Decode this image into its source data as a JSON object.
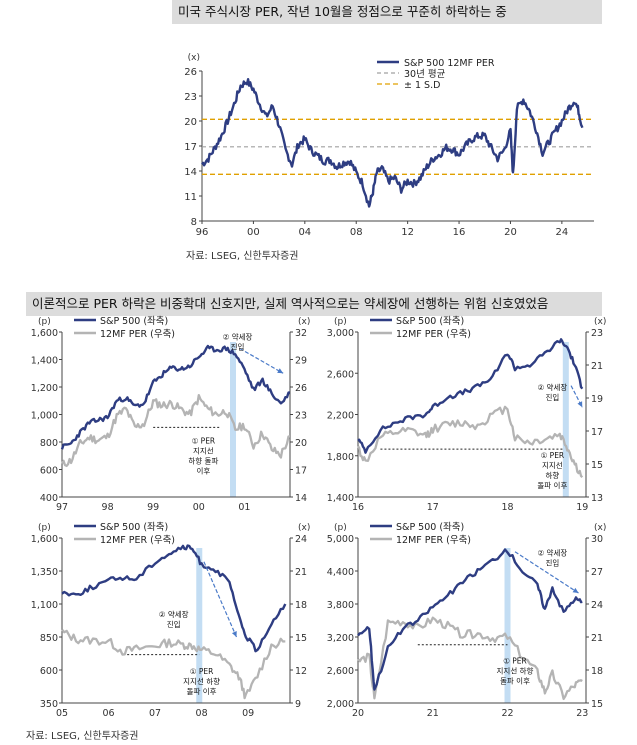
{
  "top": {
    "title": "미국 주식시장 PER, 작년 10월을 정점으로 꾸준히 하락하는 중",
    "source": "자료: LSEG, 신한투자증권",
    "unit": "(x)",
    "legend": {
      "s1": "S&P 500 12MF PER",
      "s2": "30년 평균",
      "s3": "± 1 S.D"
    }
  },
  "bottom": {
    "title": "이론적으로 PER 하락은 비중확대 신호지만, 실제 역사적으로는 약세장에 선행하는 위험 신호였었음",
    "source": "자료: LSEG, 신한투자증권"
  },
  "colors": {
    "navy": "#2e3d82",
    "gray": "#b4b4b4",
    "orange": "#e0a000",
    "band": "#bcd9f2",
    "arrow": "#4a7ac8",
    "avgline": "#a0a0a0"
  },
  "chart_data": [
    {
      "type": "line",
      "unit": "(x)",
      "x_ticks": [
        "96",
        "00",
        "04",
        "08",
        "12",
        "16",
        "20",
        "24"
      ],
      "ylim": [
        8,
        26
      ],
      "y_ticks": [
        8,
        11,
        14,
        17,
        20,
        23,
        26
      ],
      "reference_lines": {
        "mean": 16.9,
        "plus_1sd": 20.2,
        "minus_1sd": 13.6
      },
      "series": [
        {
          "name": "S&P 500 12MF PER",
          "x": [
            1996.0,
            1996.5,
            1997.0,
            1997.5,
            1998.0,
            1998.5,
            1999.0,
            1999.5,
            2000.0,
            2000.5,
            2001.0,
            2001.5,
            2002.0,
            2002.5,
            2003.0,
            2003.5,
            2004.0,
            2004.5,
            2005.0,
            2005.5,
            2006.0,
            2006.5,
            2007.0,
            2007.5,
            2008.0,
            2008.5,
            2009.0,
            2009.3,
            2009.6,
            2010.0,
            2010.5,
            2011.0,
            2011.5,
            2012.0,
            2012.5,
            2013.0,
            2013.5,
            2014.0,
            2014.5,
            2015.0,
            2015.5,
            2016.0,
            2016.5,
            2017.0,
            2017.5,
            2018.0,
            2018.5,
            2019.0,
            2019.5,
            2020.0,
            2020.2,
            2020.5,
            2021.0,
            2021.5,
            2022.0,
            2022.5,
            2023.0,
            2023.5,
            2024.0,
            2024.5,
            2025.0,
            2025.3,
            2025.6
          ],
          "values": [
            14.8,
            15.5,
            16.8,
            18.2,
            20.0,
            22.0,
            24.2,
            24.8,
            23.8,
            22.0,
            20.5,
            21.8,
            19.5,
            16.5,
            14.8,
            17.2,
            17.8,
            16.5,
            15.8,
            15.2,
            15.3,
            14.5,
            15.0,
            15.2,
            13.8,
            12.5,
            9.8,
            11.5,
            13.8,
            14.3,
            12.8,
            13.2,
            11.8,
            12.8,
            12.5,
            13.2,
            14.5,
            15.5,
            16.0,
            16.8,
            16.6,
            16.0,
            17.0,
            17.8,
            18.2,
            18.2,
            16.8,
            15.5,
            16.5,
            18.8,
            13.5,
            21.5,
            22.6,
            21.2,
            19.0,
            16.2,
            17.5,
            18.8,
            20.0,
            21.5,
            22.5,
            21.2,
            19.2
          ]
        }
      ]
    },
    {
      "type": "line",
      "left_unit": "(p)",
      "right_unit": "(x)",
      "x_ticks": [
        "97",
        "98",
        "99",
        "00",
        "01"
      ],
      "left_ticks": [
        400,
        600,
        800,
        1000,
        1200,
        1400,
        1600
      ],
      "right_ticks": [
        14,
        17,
        20,
        23,
        26,
        29,
        32
      ],
      "left_ylim": [
        400,
        1600
      ],
      "right_ylim": [
        14,
        32
      ],
      "band_x": 2000.75,
      "annotations": [
        "② 약세장\n진입",
        "① PER\n지지선\n하향 돌파\n이후"
      ],
      "series": [
        {
          "name": "S&P 500 (좌축)",
          "axis": "left",
          "x": [
            1997.0,
            1997.2,
            1997.4,
            1997.6,
            1997.8,
            1998.0,
            1998.2,
            1998.4,
            1998.6,
            1998.8,
            1999.0,
            1999.2,
            1999.4,
            1999.6,
            1999.8,
            2000.0,
            2000.2,
            2000.4,
            2000.6,
            2000.8,
            2001.0,
            2001.2,
            2001.4,
            2001.6,
            2001.8,
            2002.0
          ],
          "values": [
            760,
            790,
            870,
            940,
            960,
            980,
            1100,
            1120,
            1060,
            1080,
            1230,
            1290,
            1340,
            1330,
            1350,
            1420,
            1480,
            1470,
            1480,
            1440,
            1330,
            1180,
            1250,
            1150,
            1080,
            1160
          ]
        },
        {
          "name": "12MF PER (우축)",
          "axis": "right",
          "x": [
            1997.0,
            1997.2,
            1997.4,
            1997.6,
            1997.8,
            1998.0,
            1998.2,
            1998.4,
            1998.6,
            1998.8,
            1999.0,
            1999.2,
            1999.4,
            1999.6,
            1999.8,
            2000.0,
            2000.2,
            2000.4,
            2000.6,
            2000.8,
            2001.0,
            2001.2,
            2001.4,
            2001.6,
            2001.8,
            2002.0
          ],
          "values": [
            17.5,
            18.0,
            19.8,
            20.5,
            20.2,
            20.6,
            22.8,
            23.6,
            21.6,
            22.0,
            24.4,
            24.0,
            24.2,
            23.6,
            23.0,
            24.8,
            23.6,
            23.0,
            23.4,
            21.4,
            21.8,
            19.6,
            21.0,
            19.2,
            18.6,
            20.6
          ]
        }
      ]
    },
    {
      "type": "line",
      "left_unit": "(p)",
      "right_unit": "(x)",
      "x_ticks": [
        "16",
        "17",
        "18",
        "19"
      ],
      "left_ticks": [
        1400,
        1800,
        2200,
        2600,
        3000
      ],
      "right_ticks": [
        13,
        15,
        17,
        19,
        21,
        23
      ],
      "left_ylim": [
        1400,
        3000
      ],
      "right_ylim": [
        13,
        23
      ],
      "band_x": 2018.78,
      "annotations": [
        "② 약세장\n진입",
        "① PER\n지지선\n하향\n돌파 이후"
      ],
      "series": [
        {
          "name": "S&P 500 (좌축)",
          "axis": "left",
          "x": [
            2016.0,
            2016.1,
            2016.3,
            2016.5,
            2016.7,
            2016.9,
            2017.0,
            2017.2,
            2017.4,
            2017.6,
            2017.8,
            2018.0,
            2018.1,
            2018.3,
            2018.5,
            2018.7,
            2018.8,
            2018.9,
            2019.0
          ],
          "values": [
            1960,
            1850,
            2050,
            2120,
            2170,
            2200,
            2270,
            2370,
            2410,
            2470,
            2560,
            2800,
            2650,
            2680,
            2790,
            2920,
            2850,
            2680,
            2450
          ]
        },
        {
          "name": "12MF PER (우축)",
          "axis": "right",
          "x": [
            2016.0,
            2016.1,
            2016.3,
            2016.5,
            2016.7,
            2016.9,
            2017.0,
            2017.2,
            2017.4,
            2017.6,
            2017.8,
            2018.0,
            2018.1,
            2018.3,
            2018.5,
            2018.7,
            2018.8,
            2018.9,
            2019.0
          ],
          "values": [
            16.0,
            15.1,
            16.6,
            16.9,
            17.0,
            16.7,
            17.1,
            17.4,
            17.5,
            17.3,
            18.0,
            18.4,
            16.6,
            16.3,
            16.5,
            16.8,
            16.0,
            15.0,
            14.2
          ]
        }
      ]
    },
    {
      "type": "line",
      "left_unit": "(p)",
      "right_unit": "(x)",
      "x_ticks": [
        "05",
        "06",
        "07",
        "08",
        "09"
      ],
      "left_ticks": [
        350,
        600,
        850,
        1100,
        1350,
        1600
      ],
      "right_ticks": [
        9,
        12,
        15,
        18,
        21,
        24
      ],
      "left_ylim": [
        350,
        1600
      ],
      "right_ylim": [
        9,
        24
      ],
      "band_x": 2007.95,
      "annotations": [
        "② 약세장\n진입",
        "① PER\n지지선 하향\n돌파 이후"
      ],
      "series": [
        {
          "name": "S&P 500 (좌축)",
          "axis": "left",
          "x": [
            2005.0,
            2005.3,
            2005.6,
            2006.0,
            2006.3,
            2006.6,
            2007.0,
            2007.3,
            2007.6,
            2007.8,
            2008.0,
            2008.3,
            2008.6,
            2008.8,
            2008.95,
            2009.2,
            2009.5,
            2009.8
          ],
          "values": [
            1190,
            1170,
            1220,
            1280,
            1300,
            1290,
            1420,
            1480,
            1530,
            1520,
            1400,
            1360,
            1260,
            1000,
            860,
            740,
            960,
            1100
          ]
        },
        {
          "name": "12MF PER (우축)",
          "axis": "right",
          "x": [
            2005.0,
            2005.3,
            2005.6,
            2006.0,
            2006.3,
            2006.6,
            2007.0,
            2007.3,
            2007.6,
            2007.8,
            2008.0,
            2008.3,
            2008.6,
            2008.8,
            2008.95,
            2009.2,
            2009.5,
            2009.8
          ],
          "values": [
            15.5,
            14.8,
            14.7,
            14.6,
            13.7,
            13.9,
            14.2,
            14.5,
            14.3,
            14.2,
            13.8,
            13.5,
            12.4,
            11.4,
            9.5,
            11.5,
            14.2,
            14.6
          ]
        }
      ]
    },
    {
      "type": "line",
      "left_unit": "(p)",
      "right_unit": "(x)",
      "x_ticks": [
        "20",
        "21",
        "22",
        "23"
      ],
      "left_ticks": [
        2000,
        2600,
        3200,
        3800,
        4400,
        5000
      ],
      "right_ticks": [
        15,
        18,
        21,
        24,
        27,
        30
      ],
      "left_ylim": [
        2000,
        5000
      ],
      "right_ylim": [
        15,
        30
      ],
      "band_x": 2022.0,
      "annotations": [
        "② 약세장\n진입",
        "① PER\n지지선 하향\n돌파 이후"
      ],
      "series": [
        {
          "name": "S&P 500 (좌축)",
          "axis": "left",
          "x": [
            2020.0,
            2020.15,
            2020.22,
            2020.4,
            2020.6,
            2020.8,
            2021.0,
            2021.2,
            2021.4,
            2021.6,
            2021.8,
            2022.0,
            2022.2,
            2022.4,
            2022.5,
            2022.6,
            2022.75,
            2022.9,
            2023.0
          ],
          "values": [
            3250,
            3380,
            2240,
            3000,
            3350,
            3500,
            3750,
            3950,
            4200,
            4400,
            4600,
            4780,
            4400,
            4150,
            3700,
            4100,
            3650,
            3900,
            3840
          ]
        },
        {
          "name": "12MF PER (우축)",
          "axis": "right",
          "x": [
            2020.0,
            2020.15,
            2020.22,
            2020.4,
            2020.6,
            2020.8,
            2021.0,
            2021.2,
            2021.4,
            2021.6,
            2021.8,
            2022.0,
            2022.2,
            2022.4,
            2022.5,
            2022.6,
            2022.75,
            2022.9,
            2023.0
          ],
          "values": [
            18.8,
            19.2,
            15.3,
            22.3,
            22.4,
            21.8,
            22.6,
            22.0,
            21.2,
            21.3,
            20.9,
            21.0,
            19.2,
            17.8,
            16.0,
            17.6,
            15.6,
            16.6,
            17.0
          ]
        }
      ]
    }
  ]
}
